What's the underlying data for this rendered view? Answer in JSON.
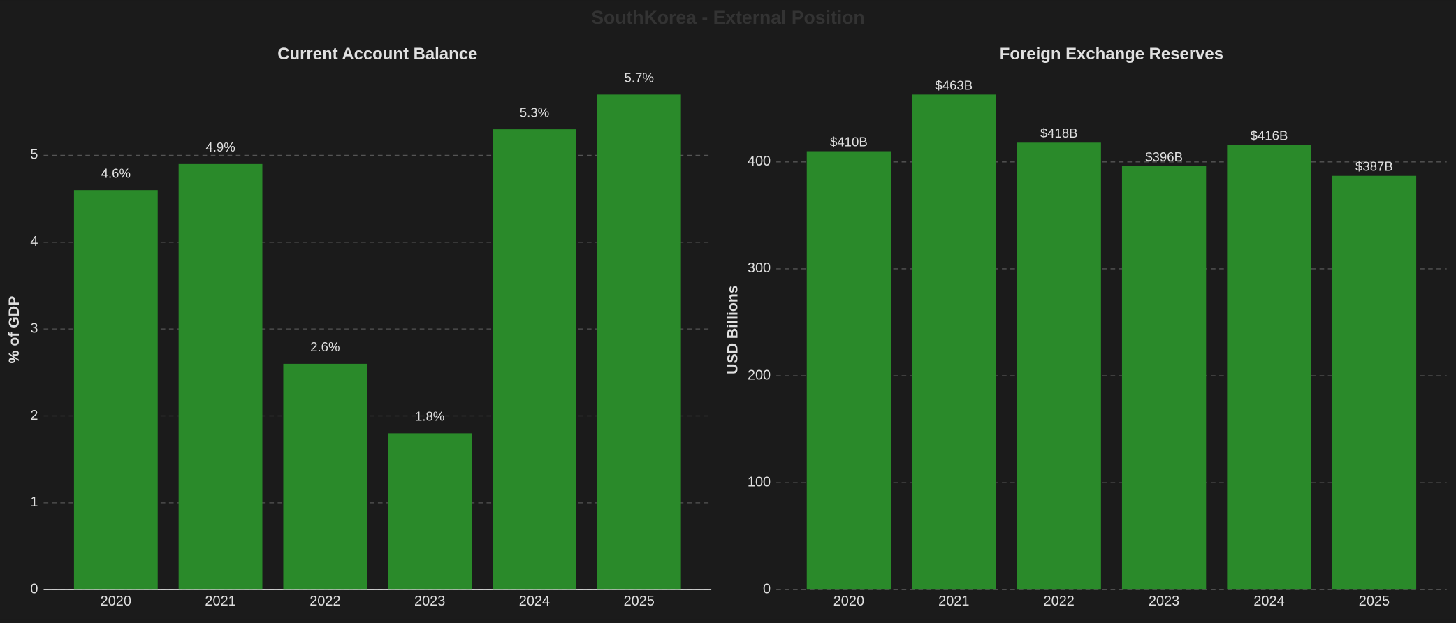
{
  "title": "SouthKorea - External Position",
  "chart_data": [
    {
      "type": "bar",
      "title": "Current Account Balance",
      "y_label": "% of GDP",
      "categories": [
        "2020",
        "2021",
        "2022",
        "2023",
        "2024",
        "2025"
      ],
      "values": [
        4.6,
        4.9,
        2.6,
        1.8,
        5.3,
        5.7
      ],
      "value_labels": [
        "4.6%",
        "4.9%",
        "2.6%",
        "1.8%",
        "5.3%",
        "5.7%"
      ],
      "color": "#2a8a2a",
      "ylim": [
        0,
        5.985
      ],
      "yticks": [
        0,
        1,
        2,
        3,
        4,
        5
      ],
      "grid": true
    },
    {
      "type": "bar",
      "title": "Foreign Exchange Reserves",
      "y_label": "USD Billions",
      "categories": [
        "2020",
        "2021",
        "2022",
        "2023",
        "2024",
        "2025"
      ],
      "values": [
        410,
        463,
        418,
        396,
        416,
        387
      ],
      "value_labels": [
        "$410B",
        "$463B",
        "$418B",
        "$396B",
        "$416B",
        "$387B"
      ],
      "color": "#2a8a2a",
      "ylim": [
        0,
        486.15
      ],
      "yticks": [
        0,
        100,
        200,
        300,
        400
      ],
      "grid": true
    }
  ]
}
